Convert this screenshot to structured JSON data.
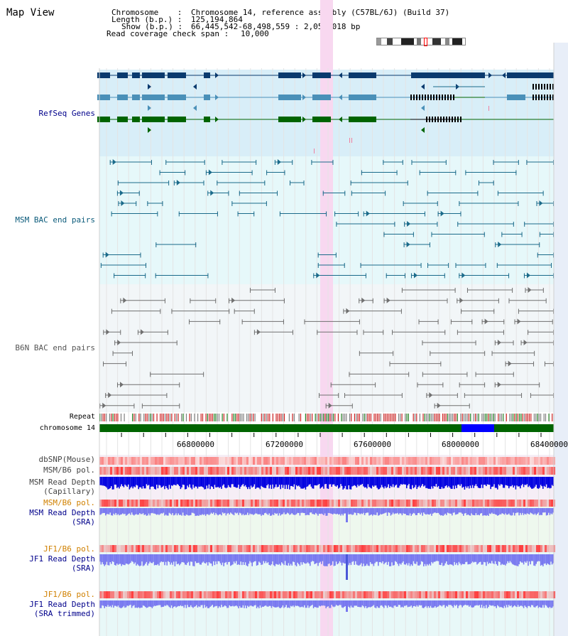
{
  "title": "Map View",
  "header": {
    "chromosome_label": "Chromosome    :",
    "chromosome_value": "Chromosome 14, reference assembly (C57BL/6J) (Build 37)",
    "length_label": "Length (b.p.) :",
    "length_value": "125,194,864",
    "show_label": "Show (b.p.) :",
    "show_value": "66,445,542-68,498,559 : 2,053,018 bp",
    "coverage_label": "Read coverage check span :",
    "coverage_value": "10,000"
  },
  "tracks": {
    "refseq": "RefSeq Genes",
    "msm_bac": "MSM BAC end pairs",
    "b6n_bac": "B6N BAC end pairs",
    "repeat": "Repeat",
    "chromosome": "chromosome 14",
    "dbsnp": "dbSNP(Mouse)",
    "msm_b6_pol": "MSM/B6 pol.",
    "msm_read_depth_cap_1": "MSM Read Depth",
    "msm_read_depth_cap_2": "(Capillary)",
    "msm_b6_pol_2": "MSM/B6 pol.",
    "msm_read_depth_sra_1": "MSM Read Depth",
    "msm_read_depth_sra_2": "(SRA)",
    "jf1_b6_pol_1": "JF1/B6 pol.",
    "jf1_read_depth_sra_1": "JF1 Read Depth",
    "jf1_read_depth_sra_2": "(SRA)",
    "jf1_b6_pol_2": "JF1/B6 pol.",
    "jf1_read_depth_trim_1": "JF1 Read Depth",
    "jf1_read_depth_trim_2": "(SRA trimmed)"
  },
  "axis_ticks": [
    "66800000",
    "67200000",
    "67600000",
    "68000000",
    "68400000"
  ],
  "colors": {
    "refseq_bg": "#d8eef8",
    "msm_bg": "#e6f8fa",
    "b6n_bg": "#f2f6f8",
    "highlight": "#f8d8f0",
    "gene_dark": "#0a3a6e",
    "gene_mid": "#4a90b8",
    "gene_green": "#006400",
    "msm_pair": "#1a6a8a",
    "b6n_pair": "#707070",
    "chrom_green": "#006400",
    "chrom_blue": "#0000ff",
    "depth_blue": "#0000e0",
    "depth_purple": "#7878f0",
    "label_blue": "#00008b",
    "label_orange": "#d08000"
  }
}
